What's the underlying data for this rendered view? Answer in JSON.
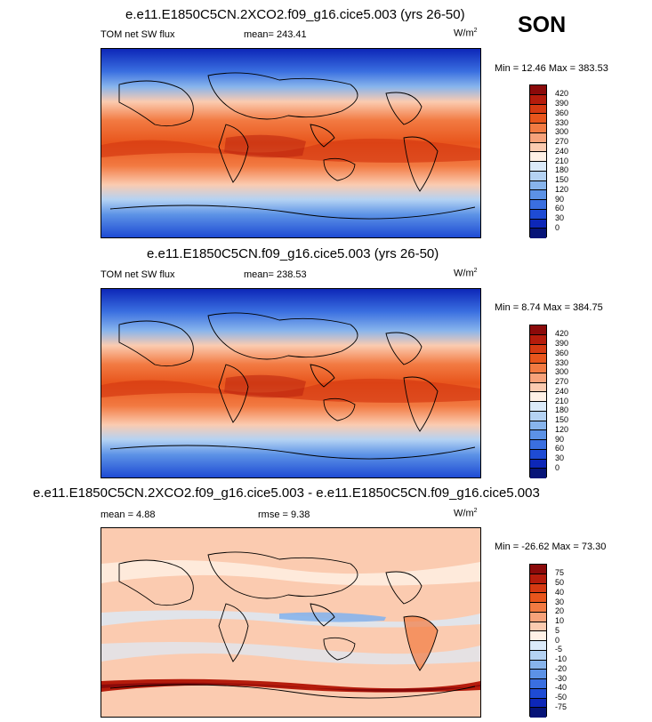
{
  "season": "SON",
  "charts": [
    {
      "title": "e.e11.E1850C5CN.2XCO2.f09_g16.cice5.003 (yrs 26-50)",
      "field": "TOM net SW flux",
      "stat1": "mean= 243.41",
      "stat2": "",
      "units": "W/m",
      "units_sup": "2",
      "minmax": "Min =  12.46 Max = 383.53"
    },
    {
      "title": "e.e11.E1850C5CN.f09_g16.cice5.003 (yrs 26-50)",
      "field": "TOM net SW flux",
      "stat1": "mean= 238.53",
      "stat2": "",
      "units": "W/m",
      "units_sup": "2",
      "minmax": "Min =  8.74 Max = 384.75"
    },
    {
      "title": "e.e11.E1850C5CN.2XCO2.f09_g16.cice5.003 - e.e11.E1850C5CN.f09_g16.cice5.003",
      "field": "",
      "stat1": "mean =   4.88",
      "stat2": "rmse =   9.38",
      "units": "W/m",
      "units_sup": "2",
      "minmax": "Min = -26.62 Max =  73.30"
    }
  ],
  "colorbars": {
    "flux": {
      "labels": [
        "420",
        "390",
        "360",
        "330",
        "300",
        "270",
        "240",
        "210",
        "180",
        "150",
        "120",
        "90",
        "60",
        "30",
        "0"
      ],
      "colors": [
        "#8b0a0a",
        "#b51c0c",
        "#d63a12",
        "#e8551c",
        "#f27a42",
        "#f7a27a",
        "#fbcbb0",
        "#fff1e6",
        "#dbeaf9",
        "#b4d2f3",
        "#87b4ec",
        "#5c92e6",
        "#3a6fe0",
        "#1e4bd4",
        "#0d27b8",
        "#061478"
      ]
    },
    "diff": {
      "labels": [
        "75",
        "50",
        "40",
        "30",
        "20",
        "10",
        "5",
        "0",
        "-5",
        "-10",
        "-20",
        "-30",
        "-40",
        "-50",
        "-75"
      ],
      "colors": [
        "#8b0a0a",
        "#b51c0c",
        "#d63a12",
        "#e8551c",
        "#f27a42",
        "#f7a27a",
        "#fbcbb0",
        "#fff1e6",
        "#dbeaf9",
        "#b4d2f3",
        "#87b4ec",
        "#5c92e6",
        "#3a6fe0",
        "#1e4bd4",
        "#0d27b8",
        "#061478"
      ]
    }
  },
  "chart_data": [
    {
      "type": "heatmap",
      "title": "e.e11.E1850C5CN.2XCO2.f09_g16.cice5.003 (yrs 26-50)",
      "variable": "TOM net SW flux",
      "units": "W/m2",
      "season": "SON",
      "mean": 243.41,
      "min": 12.46,
      "max": 383.53,
      "contour_levels": [
        0,
        30,
        60,
        90,
        120,
        150,
        180,
        210,
        240,
        270,
        300,
        330,
        360,
        390,
        420
      ]
    },
    {
      "type": "heatmap",
      "title": "e.e11.E1850C5CN.f09_g16.cice5.003 (yrs 26-50)",
      "variable": "TOM net SW flux",
      "units": "W/m2",
      "season": "SON",
      "mean": 238.53,
      "min": 8.74,
      "max": 384.75,
      "contour_levels": [
        0,
        30,
        60,
        90,
        120,
        150,
        180,
        210,
        240,
        270,
        300,
        330,
        360,
        390,
        420
      ]
    },
    {
      "type": "heatmap",
      "title": "e.e11.E1850C5CN.2XCO2.f09_g16.cice5.003 - e.e11.E1850C5CN.f09_g16.cice5.003",
      "units": "W/m2",
      "season": "SON",
      "mean": 4.88,
      "rmse": 9.38,
      "min": -26.62,
      "max": 73.3,
      "contour_levels": [
        -75,
        -50,
        -40,
        -30,
        -20,
        -10,
        -5,
        0,
        5,
        10,
        20,
        30,
        40,
        50,
        75
      ]
    }
  ]
}
